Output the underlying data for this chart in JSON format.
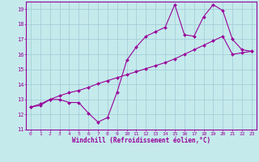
{
  "xlabel": "Windchill (Refroidissement éolien,°C)",
  "xlim": [
    -0.5,
    23.5
  ],
  "ylim": [
    11,
    19.5
  ],
  "yticks": [
    11,
    12,
    13,
    14,
    15,
    16,
    17,
    18,
    19
  ],
  "xticks": [
    0,
    1,
    2,
    3,
    4,
    5,
    6,
    7,
    8,
    9,
    10,
    11,
    12,
    13,
    14,
    15,
    16,
    17,
    18,
    19,
    20,
    21,
    22,
    23
  ],
  "bg_color": "#c5eaec",
  "grid_color": "#9dcbd4",
  "line_color": "#990099",
  "line1_x": [
    0,
    1,
    2,
    3,
    4,
    5,
    6,
    7,
    8,
    9,
    10,
    11,
    12,
    13,
    14,
    15,
    16,
    17,
    18,
    19,
    20,
    21,
    22,
    23
  ],
  "line1_y": [
    12.5,
    12.6,
    13.0,
    13.0,
    12.8,
    12.8,
    12.1,
    11.5,
    11.8,
    13.5,
    15.6,
    16.5,
    17.2,
    17.5,
    17.8,
    19.3,
    17.3,
    17.2,
    18.5,
    19.3,
    18.9,
    17.0,
    16.3,
    16.2
  ],
  "line2_x": [
    0,
    1,
    2,
    3,
    4,
    5,
    6,
    7,
    8,
    9,
    10,
    11,
    12,
    13,
    14,
    15,
    16,
    17,
    18,
    19,
    20,
    21,
    22,
    23
  ],
  "line2_y": [
    12.5,
    12.7,
    13.0,
    13.25,
    13.45,
    13.6,
    13.8,
    14.05,
    14.25,
    14.45,
    14.65,
    14.85,
    15.05,
    15.25,
    15.45,
    15.7,
    16.0,
    16.3,
    16.6,
    16.9,
    17.2,
    16.0,
    16.1,
    16.2
  ]
}
